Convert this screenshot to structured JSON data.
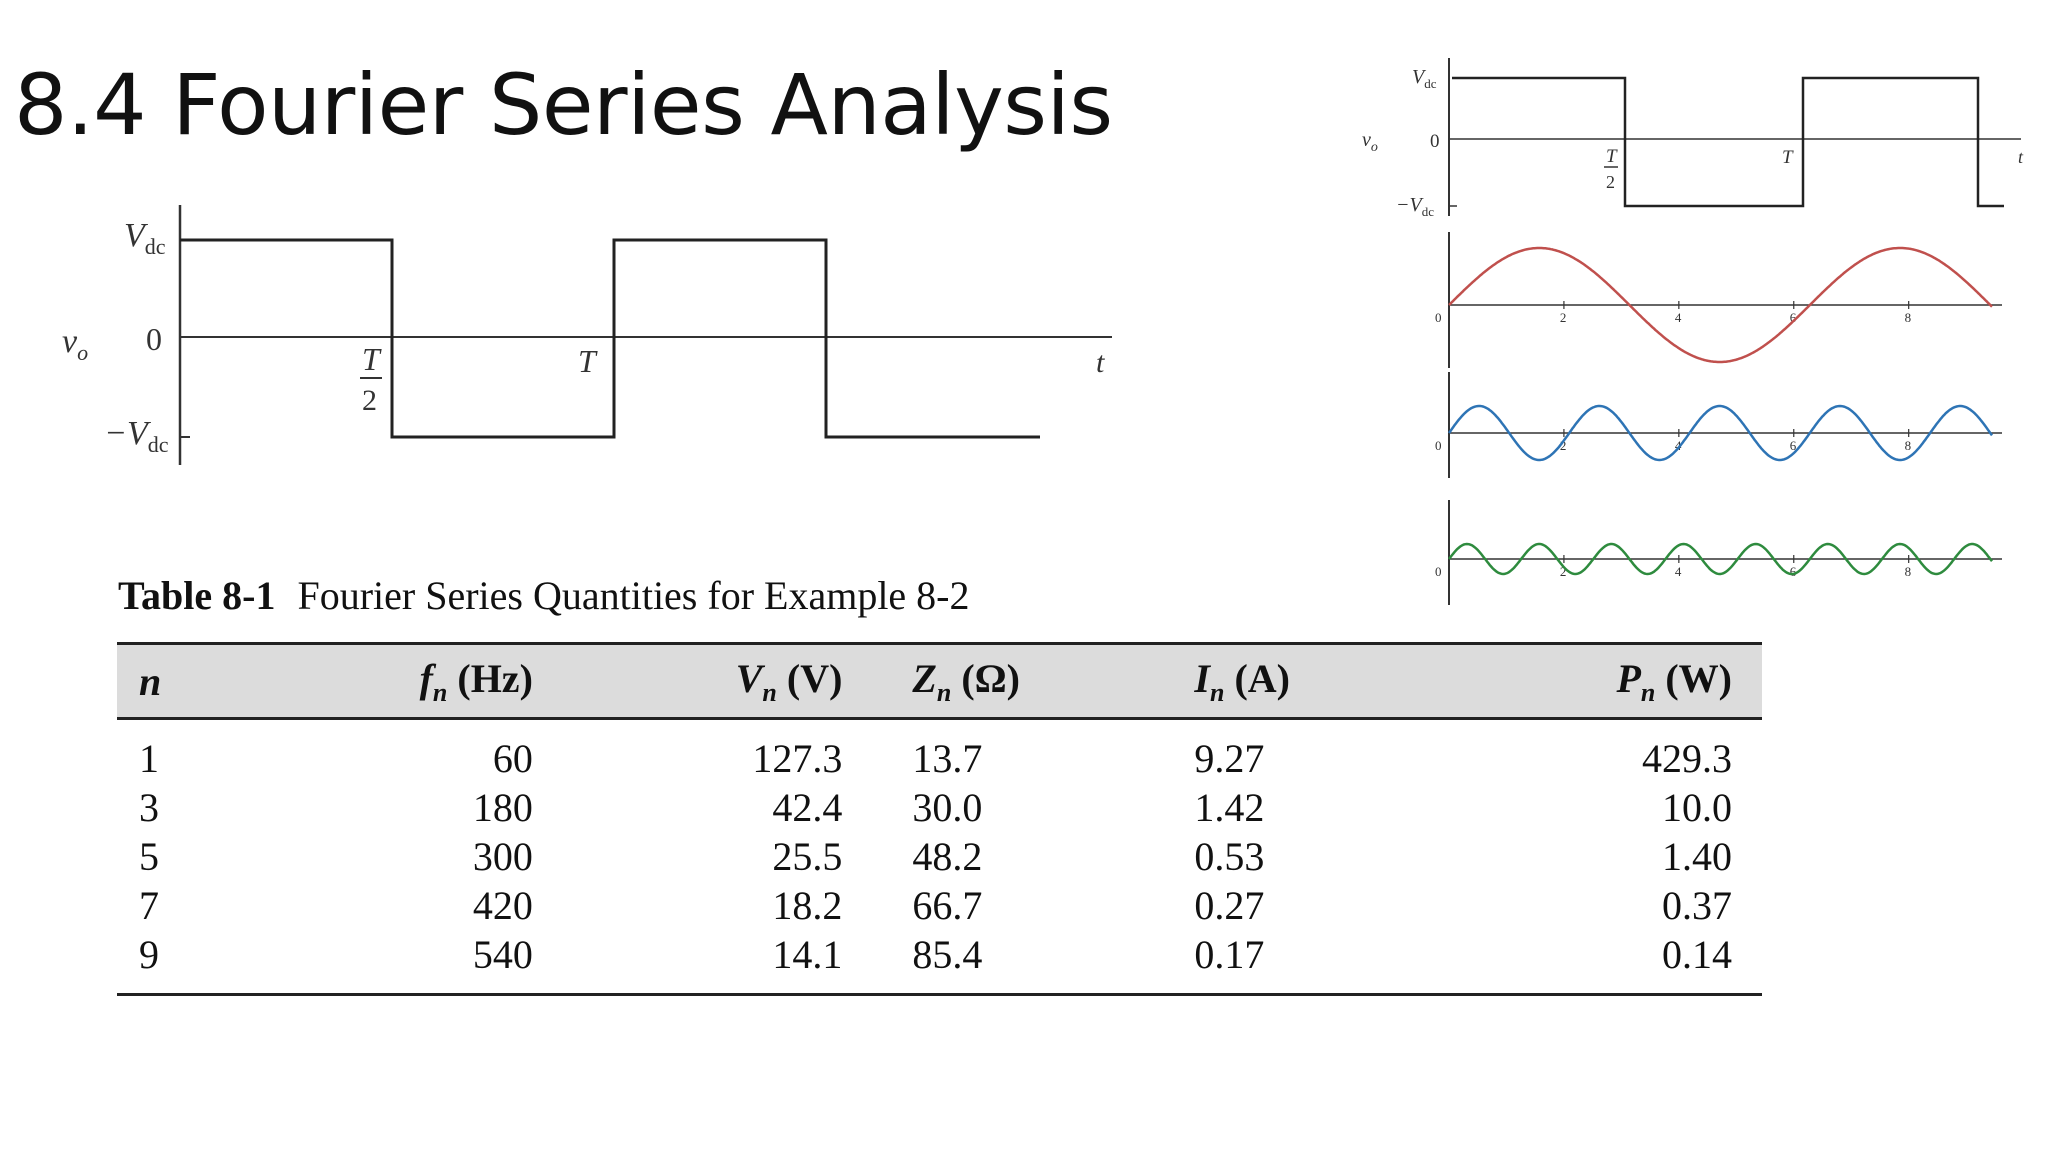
{
  "slide": {
    "title": "8.4 Fourier Series Analysis"
  },
  "waveform": {
    "v_label": "v",
    "v_sub": "o",
    "top_label": "V",
    "top_sub": "dc",
    "zero_label": "0",
    "bottom_label": "−V",
    "bottom_sub": "dc",
    "half_period_num": "T",
    "half_period_den": "2",
    "period_label": "T",
    "time_label": "t"
  },
  "harmonics": {
    "tick_labels": [
      "0",
      "2",
      "4",
      "6",
      "8"
    ],
    "colors": [
      "#c0504d",
      "#2e74b5",
      "#2e8b3e"
    ]
  },
  "table": {
    "caption_bold": "Table 8-1",
    "caption_text": "Fourier Series Quantities for Example 8-2",
    "headers": [
      {
        "sym": "n",
        "sub": "",
        "unit": ""
      },
      {
        "sym": "f",
        "sub": "n",
        "unit": " (Hz)"
      },
      {
        "sym": "V",
        "sub": "n",
        "unit": " (V)"
      },
      {
        "sym": "Z",
        "sub": "n",
        "unit": " (Ω)"
      },
      {
        "sym": "I",
        "sub": "n",
        "unit": " (A)"
      },
      {
        "sym": "P",
        "sub": "n",
        "unit": " (W)"
      }
    ],
    "rows": [
      [
        "1",
        "60",
        "127.3",
        "13.7",
        "9.27",
        "429.3"
      ],
      [
        "3",
        "180",
        "42.4",
        "30.0",
        "1.42",
        "10.0"
      ],
      [
        "5",
        "300",
        "25.5",
        "48.2",
        "0.53",
        "1.40"
      ],
      [
        "7",
        "420",
        "18.2",
        "66.7",
        "0.27",
        "0.37"
      ],
      [
        "9",
        "540",
        "14.1",
        "85.4",
        "0.17",
        "0.14"
      ]
    ]
  }
}
